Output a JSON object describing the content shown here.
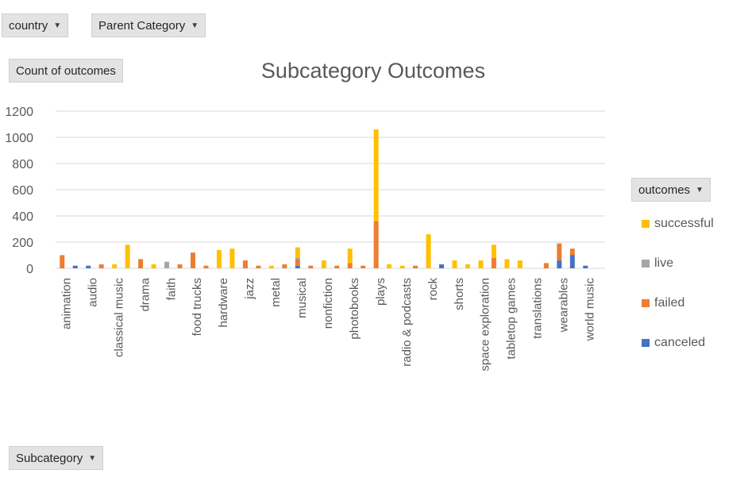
{
  "filters": {
    "country": "country",
    "parent_category": "Parent Category",
    "subcategory": "Subcategory",
    "values_field": "Count of outcomes",
    "legend_field": "outcomes"
  },
  "chart_data": {
    "type": "bar",
    "stacked": true,
    "title": "Subcategory Outcomes",
    "xlabel": "",
    "ylabel": "",
    "ylim": [
      0,
      1200
    ],
    "yticks": [
      0,
      200,
      400,
      600,
      800,
      1000,
      1200
    ],
    "grid": true,
    "legend_position": "right",
    "labeled_categories": [
      "animation",
      "audio",
      "classical music",
      "drama",
      "faith",
      "food trucks",
      "hardware",
      "jazz",
      "metal",
      "musical",
      "nonfiction",
      "photobooks",
      "plays",
      "radio & podcasts",
      "rock",
      "shorts",
      "space exploration",
      "tabletop games",
      "translations",
      "wearables",
      "world music"
    ],
    "categories": [
      "animation",
      "animation (2)",
      "audio",
      "audio (2)",
      "classical music",
      "classical music (2)",
      "drama",
      "drama (2)",
      "faith",
      "faith (2)",
      "food trucks",
      "food trucks (2)",
      "hardware",
      "hardware (2)",
      "jazz",
      "jazz (2)",
      "metal",
      "metal (2)",
      "musical",
      "musical (2)",
      "nonfiction",
      "nonfiction (2)",
      "photobooks",
      "photobooks (2)",
      "plays",
      "plays (2)",
      "radio & podcasts",
      "radio & podcasts (2)",
      "rock",
      "rock (2)",
      "shorts",
      "shorts (2)",
      "space exploration",
      "space exploration (2)",
      "tabletop games",
      "tabletop games (2)",
      "translations",
      "translations (2)",
      "wearables",
      "wearables (2)",
      "world music",
      "world music (2)"
    ],
    "series": [
      {
        "name": "canceled",
        "color": "#4472c4",
        "values": [
          0,
          20,
          20,
          0,
          0,
          0,
          0,
          0,
          0,
          0,
          0,
          0,
          0,
          0,
          0,
          0,
          0,
          0,
          20,
          0,
          0,
          0,
          0,
          0,
          0,
          0,
          0,
          0,
          0,
          30,
          0,
          0,
          0,
          0,
          0,
          0,
          0,
          0,
          60,
          100,
          20,
          0
        ]
      },
      {
        "name": "failed",
        "color": "#ed7d31",
        "values": [
          100,
          0,
          0,
          30,
          0,
          0,
          70,
          0,
          0,
          30,
          120,
          20,
          0,
          0,
          60,
          20,
          0,
          30,
          50,
          20,
          0,
          20,
          40,
          20,
          360,
          0,
          0,
          20,
          0,
          0,
          0,
          0,
          0,
          80,
          0,
          0,
          0,
          40,
          130,
          50,
          0,
          0
        ]
      },
      {
        "name": "live",
        "color": "#a5a5a5",
        "values": [
          0,
          0,
          0,
          0,
          0,
          0,
          0,
          0,
          50,
          0,
          0,
          0,
          0,
          0,
          0,
          0,
          0,
          0,
          10,
          0,
          0,
          0,
          0,
          0,
          0,
          0,
          0,
          0,
          0,
          0,
          0,
          0,
          0,
          0,
          0,
          0,
          0,
          0,
          0,
          0,
          0,
          0
        ]
      },
      {
        "name": "successful",
        "color": "#ffc000",
        "values": [
          0,
          0,
          0,
          0,
          30,
          180,
          0,
          30,
          0,
          0,
          0,
          0,
          140,
          150,
          0,
          0,
          20,
          0,
          80,
          0,
          60,
          0,
          110,
          0,
          700,
          30,
          20,
          0,
          260,
          0,
          60,
          30,
          60,
          100,
          70,
          60,
          0,
          0,
          0,
          0,
          0,
          0
        ]
      }
    ],
    "legend_order": [
      "successful",
      "live",
      "failed",
      "canceled"
    ]
  }
}
